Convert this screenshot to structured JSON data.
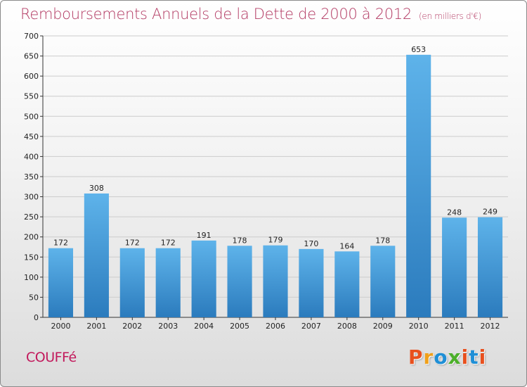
{
  "header": {
    "title": "Remboursements Annuels de la Dette de 2000 à 2012",
    "subtitle": "(en milliers d'€)"
  },
  "footer": {
    "commune": "COUFFé",
    "logo_text": "Proxiti",
    "logo_colors": [
      "#e8501e",
      "#f0a01a",
      "#1f8fd6",
      "#4caf2a",
      "#e8501e",
      "#1f8fd6",
      "#e8501e"
    ]
  },
  "colors": {
    "bar_top": "#5eb3ea",
    "bar_bottom": "#2b7bbd",
    "title": "#b33a63",
    "grid": "#cccccc"
  },
  "chart_data": {
    "type": "bar",
    "title": "Remboursements Annuels de la Dette de 2000 à 2012",
    "subtitle": "(en milliers d'€)",
    "categories": [
      "2000",
      "2001",
      "2002",
      "2003",
      "2004",
      "2005",
      "2006",
      "2007",
      "2008",
      "2009",
      "2010",
      "2011",
      "2012"
    ],
    "values": [
      172,
      308,
      172,
      172,
      191,
      178,
      179,
      170,
      164,
      178,
      653,
      248,
      249
    ],
    "ylim": [
      0,
      700
    ],
    "yticks": [
      0,
      50,
      100,
      150,
      200,
      250,
      300,
      350,
      400,
      450,
      500,
      550,
      600,
      650,
      700
    ],
    "grid": true,
    "data_labels": true
  }
}
